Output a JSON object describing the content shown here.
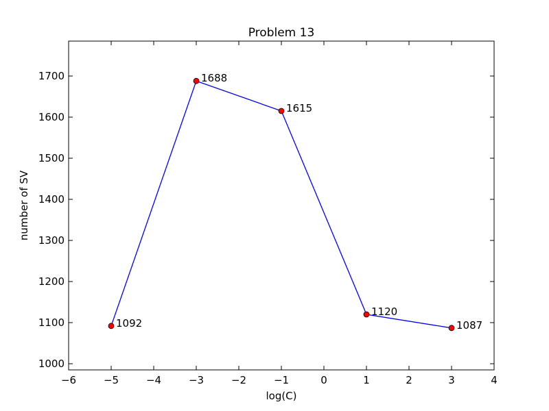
{
  "chart_data": {
    "type": "line",
    "title": "Problem 13",
    "xlabel": "log(C)",
    "ylabel": "number of SV",
    "xlim": [
      -6,
      4
    ],
    "ylim": [
      985,
      1785
    ],
    "xticks": [
      -6,
      -5,
      -4,
      -3,
      -2,
      -1,
      0,
      1,
      2,
      3,
      4
    ],
    "xtick_labels": [
      "−6",
      "−5",
      "−4",
      "−3",
      "−2",
      "−1",
      "0",
      "1",
      "2",
      "3",
      "4"
    ],
    "yticks": [
      1000,
      1100,
      1200,
      1300,
      1400,
      1500,
      1600,
      1700
    ],
    "ytick_labels": [
      "1000",
      "1100",
      "1200",
      "1300",
      "1400",
      "1500",
      "1600",
      "1700"
    ],
    "grid": false,
    "series": [
      {
        "x": [
          -5,
          -3,
          -1,
          1,
          3
        ],
        "y": [
          1092,
          1688,
          1615,
          1120,
          1087
        ],
        "point_labels": [
          "1092",
          "1688",
          "1615",
          "1120",
          "1087"
        ],
        "line_color": "#0000ff",
        "marker_color": "#ff0000"
      }
    ]
  }
}
